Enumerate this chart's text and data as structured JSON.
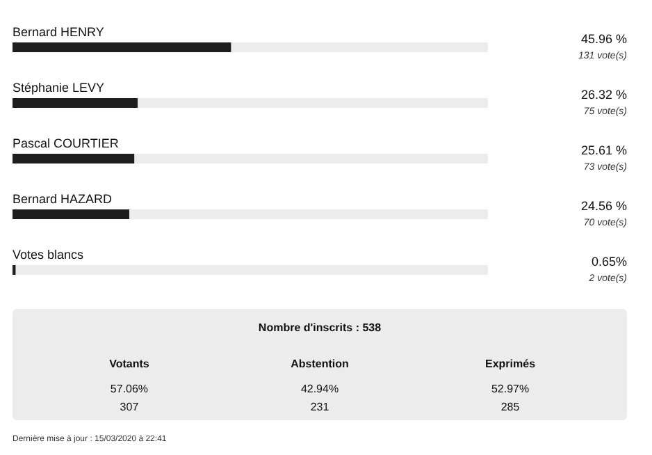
{
  "chart_data": {
    "type": "bar",
    "orientation": "horizontal",
    "categories": [
      "Bernard HENRY",
      "Stéphanie LEVY",
      "Pascal COURTIER",
      "Bernard HAZARD",
      "Votes blancs"
    ],
    "values": [
      45.96,
      26.32,
      25.61,
      24.56,
      0.65
    ],
    "color": "#1e1e1e",
    "xlim": [
      0,
      100
    ],
    "tick_labels": false,
    "value_labels": [
      "45.96 %",
      "26.32 %",
      "25.61 %",
      "24.56 %",
      "0.65%"
    ],
    "annotations": [
      "131 vote(s)",
      "75 vote(s)",
      "73 vote(s)",
      "70 vote(s)",
      "2 vote(s)",
      "Nombre d'inscrits : 538",
      "Votants",
      "Abstention",
      "Exprimés",
      "57.06%",
      "42.94%",
      "52.97%",
      "307",
      "231",
      "285",
      "Dernière mise à jour : 15/03/2020 à 22:41"
    ]
  }
}
